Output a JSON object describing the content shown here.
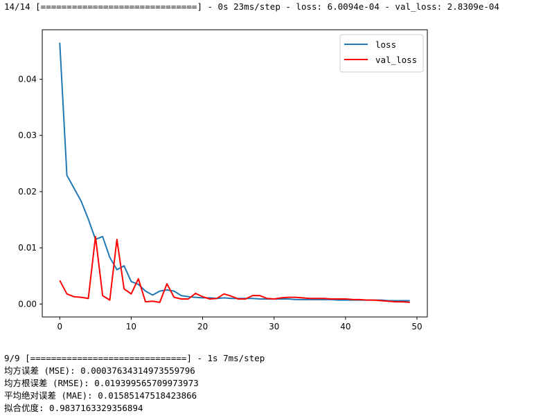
{
  "console": {
    "training_line": "14/14 [==============================] - 0s 23ms/step - loss: 6.0094e-04 - val_loss: 2.8309e-04",
    "eval_lines": [
      "9/9 [==============================] - 1s 7ms/step",
      "均方误差 (MSE): 0.00037634314973559796",
      "均方根误差 (RMSE): 0.019399565709973973",
      "平均绝对误差 (MAE): 0.01585147518423866",
      "拟合优度: 0.9837163329356894"
    ]
  },
  "chart_data": {
    "type": "line",
    "xlim": [
      -2.45,
      51.45
    ],
    "ylim": [
      -0.0023,
      0.0488
    ],
    "x_ticks": [
      0,
      10,
      20,
      30,
      40,
      50
    ],
    "y_ticks": [
      0.0,
      0.01,
      0.02,
      0.03,
      0.04
    ],
    "x_tick_labels": [
      "0",
      "10",
      "20",
      "30",
      "40",
      "50"
    ],
    "y_tick_labels": [
      "0.00",
      "0.01",
      "0.02",
      "0.03",
      "0.04"
    ],
    "legend_position": "top-right",
    "series": [
      {
        "name": "loss",
        "color": "#1f77b4",
        "x": [
          0,
          1,
          2,
          3,
          4,
          5,
          6,
          7,
          8,
          9,
          10,
          11,
          12,
          13,
          14,
          15,
          16,
          17,
          18,
          19,
          20,
          21,
          22,
          23,
          24,
          25,
          26,
          27,
          28,
          29,
          30,
          31,
          32,
          33,
          34,
          35,
          36,
          37,
          38,
          39,
          40,
          41,
          42,
          43,
          44,
          45,
          46,
          47,
          48,
          49
        ],
        "y": [
          0.0465,
          0.0229,
          0.0206,
          0.0183,
          0.0151,
          0.0115,
          0.012,
          0.0083,
          0.0061,
          0.0068,
          0.004,
          0.0035,
          0.0023,
          0.0016,
          0.0023,
          0.0025,
          0.0023,
          0.0015,
          0.0013,
          0.0012,
          0.0011,
          0.0011,
          0.001,
          0.0011,
          0.001,
          0.001,
          0.001,
          0.001,
          0.0009,
          0.0009,
          0.0009,
          0.0009,
          0.0009,
          0.0008,
          0.0008,
          0.0008,
          0.0008,
          0.0008,
          0.0008,
          0.0007,
          0.0007,
          0.0007,
          0.0007,
          0.0007,
          0.0007,
          0.0007,
          0.0006,
          0.0006,
          0.0006,
          0.0006
        ]
      },
      {
        "name": "val_loss",
        "color": "#ff0000",
        "x": [
          0,
          1,
          2,
          3,
          4,
          5,
          6,
          7,
          8,
          9,
          10,
          11,
          12,
          13,
          14,
          15,
          16,
          17,
          18,
          19,
          20,
          21,
          22,
          23,
          24,
          25,
          26,
          27,
          28,
          29,
          30,
          31,
          32,
          33,
          34,
          35,
          36,
          37,
          38,
          39,
          40,
          41,
          42,
          43,
          44,
          45,
          46,
          47,
          48,
          49
        ],
        "y": [
          0.0042,
          0.0018,
          0.0013,
          0.0012,
          0.001,
          0.012,
          0.0015,
          0.0007,
          0.0115,
          0.0027,
          0.0018,
          0.0045,
          0.0004,
          0.0005,
          0.0003,
          0.0036,
          0.0012,
          0.0009,
          0.0009,
          0.0019,
          0.0013,
          0.0009,
          0.001,
          0.0018,
          0.0014,
          0.0009,
          0.0009,
          0.0015,
          0.0015,
          0.001,
          0.0009,
          0.0011,
          0.0012,
          0.0012,
          0.0011,
          0.001,
          0.001,
          0.001,
          0.0009,
          0.0009,
          0.0009,
          0.0008,
          0.0008,
          0.0007,
          0.0007,
          0.0006,
          0.0005,
          0.0004,
          0.0004,
          0.0003
        ]
      }
    ]
  }
}
